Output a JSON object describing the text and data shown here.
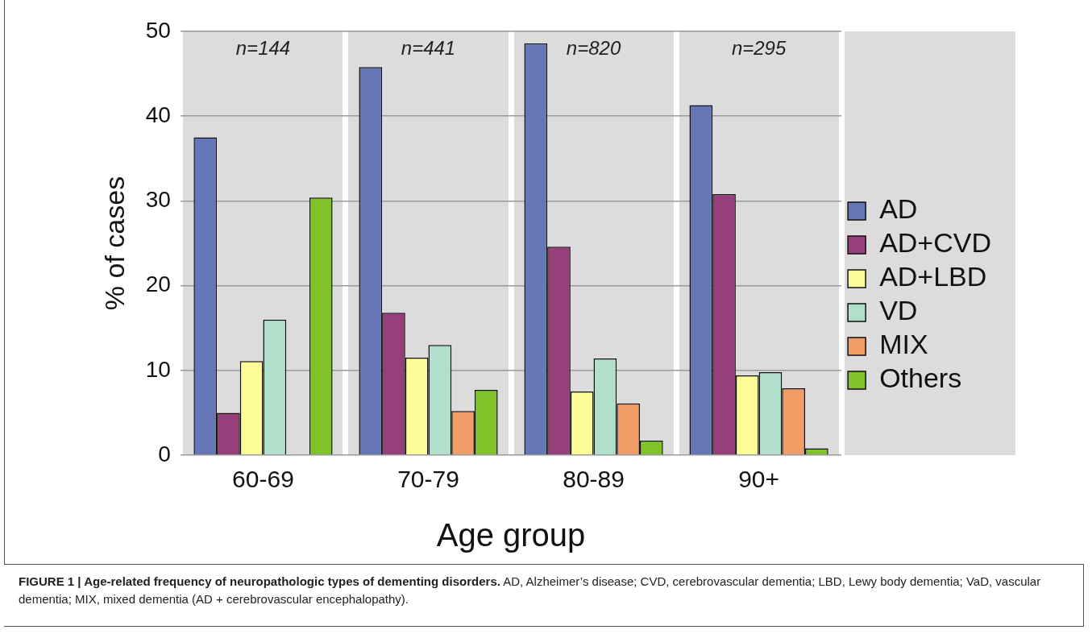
{
  "chart_data": {
    "type": "bar",
    "title": "FIGURE 1 | Age-related frequency of neuropathologic types of dementing disorders.",
    "xlabel": "Age group",
    "ylabel": "% of cases",
    "categories": [
      "60-69",
      "70-79",
      "80-89",
      "90+"
    ],
    "series": [
      {
        "name": "AD",
        "color": "#6577b7",
        "values": [
          37.5,
          45.8,
          48.6,
          41.3
        ]
      },
      {
        "name": "AD+CVD",
        "color": "#963f7a",
        "values": [
          5.0,
          16.8,
          24.6,
          30.8
        ]
      },
      {
        "name": "AD+LBD",
        "color": "#fdfb96",
        "values": [
          11.1,
          11.5,
          7.5,
          9.4
        ]
      },
      {
        "name": "VD",
        "color": "#b0e0cc",
        "values": [
          16.0,
          13.0,
          11.4,
          9.8
        ]
      },
      {
        "name": "MIX",
        "color": "#f09d68",
        "values": [
          null,
          5.2,
          6.1,
          7.9
        ]
      },
      {
        "name": "Others",
        "color": "#7fc22a",
        "values": [
          30.4,
          7.7,
          1.7,
          0.8
        ]
      }
    ],
    "ylim": [
      0,
      50
    ],
    "yticks": [
      0,
      10,
      20,
      30,
      40,
      50
    ],
    "grid": "y",
    "legend": "right",
    "annotations": [
      "n=144",
      "n=441",
      "n=820",
      "n=295",
      "AD, Alzheimer’s disease; CVD, cerebrovascular dementia; LBD, Lewy body dementia; VaD, vascular dementia; MIX, mixed dementia (AD + cerebrovascular encephalopathy)."
    ]
  }
}
